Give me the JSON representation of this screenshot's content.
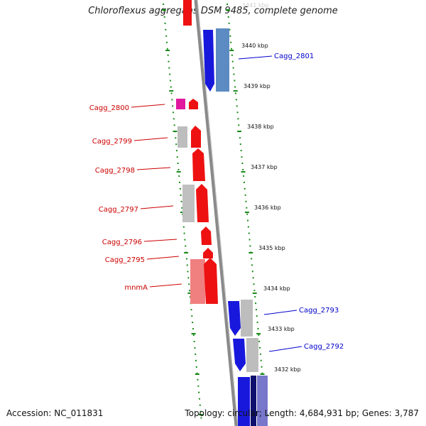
{
  "title": "Chloroflexus aggregans DSM 9485, complete genome",
  "accession": "Accession: NC_011831",
  "topology": "Topology: circular; Length: 4,684,931 bp; Genes: 3,787",
  "faded_top_label": "3441 kbp",
  "colors": {
    "reverse_strand": "#dd0000",
    "forward_strand": "#0000dd",
    "ruler": "#1a8a1a",
    "backbone": "#888888"
  },
  "kbp_ticks": [
    "3440 kbp",
    "3439 kbp",
    "3438 kbp",
    "3437 kbp",
    "3436 kbp",
    "3435 kbp",
    "3434 kbp",
    "3433 kbp",
    "3432 kbp"
  ],
  "left_labels": [
    "Cagg_2800",
    "Cagg_2799",
    "Cagg_2798",
    "Cagg_2797",
    "Cagg_2796",
    "Cagg_2795",
    "mnmA"
  ],
  "right_labels": [
    "Cagg_2801",
    "Cagg_2793",
    "Cagg_2792"
  ]
}
